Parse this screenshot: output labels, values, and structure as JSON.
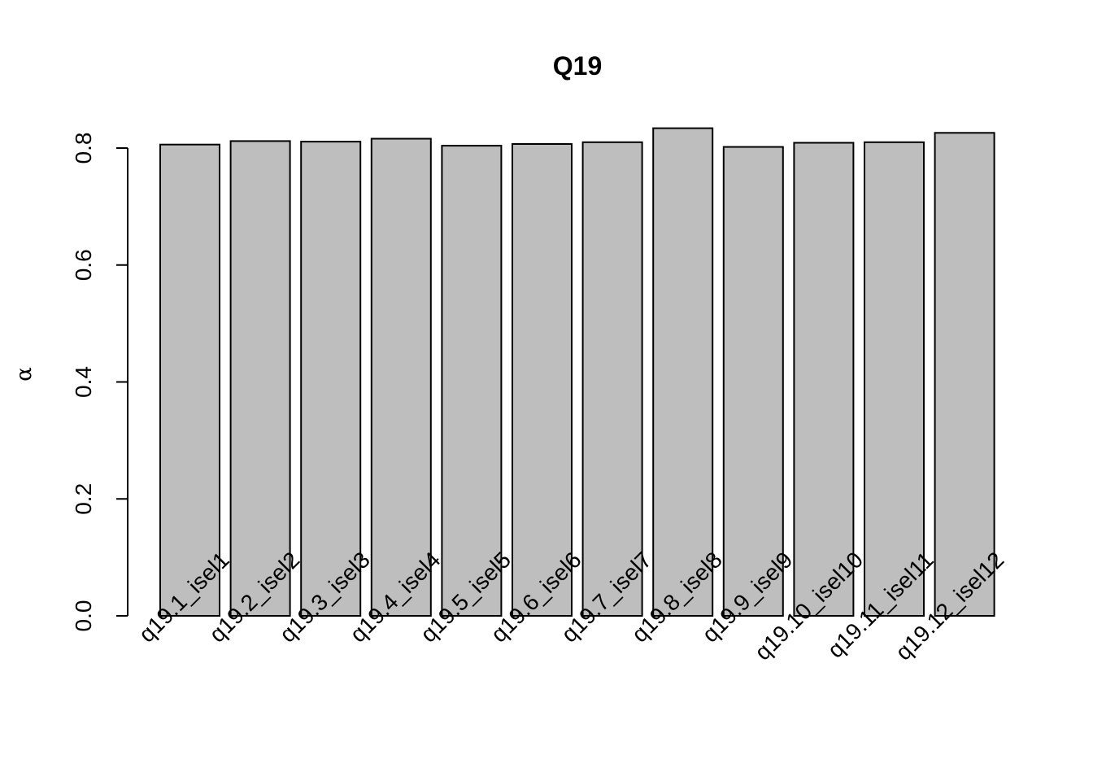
{
  "chart_data": {
    "type": "bar",
    "title": "Q19",
    "xlabel": "",
    "ylabel": "α",
    "ylim": [
      0,
      0.8
    ],
    "yticks": [
      "0.0",
      "0.2",
      "0.4",
      "0.6",
      "0.8"
    ],
    "categories": [
      "q19.1_isel1",
      "q19.2_isel2",
      "q19.3_isel3",
      "q19.4_isel4",
      "q19.5_isel5",
      "q19.6_isel6",
      "q19.7_isel7",
      "q19.8_isel8",
      "q19.9_isel9",
      "q19.10_isel10",
      "q19.11_isel11",
      "q19.12_isel12"
    ],
    "values": [
      0.806,
      0.812,
      0.811,
      0.816,
      0.804,
      0.807,
      0.81,
      0.834,
      0.802,
      0.809,
      0.81,
      0.826
    ],
    "colors": {
      "bar_fill": "#bebebe",
      "bar_stroke": "#000000"
    },
    "grid": false,
    "legend": "none"
  }
}
